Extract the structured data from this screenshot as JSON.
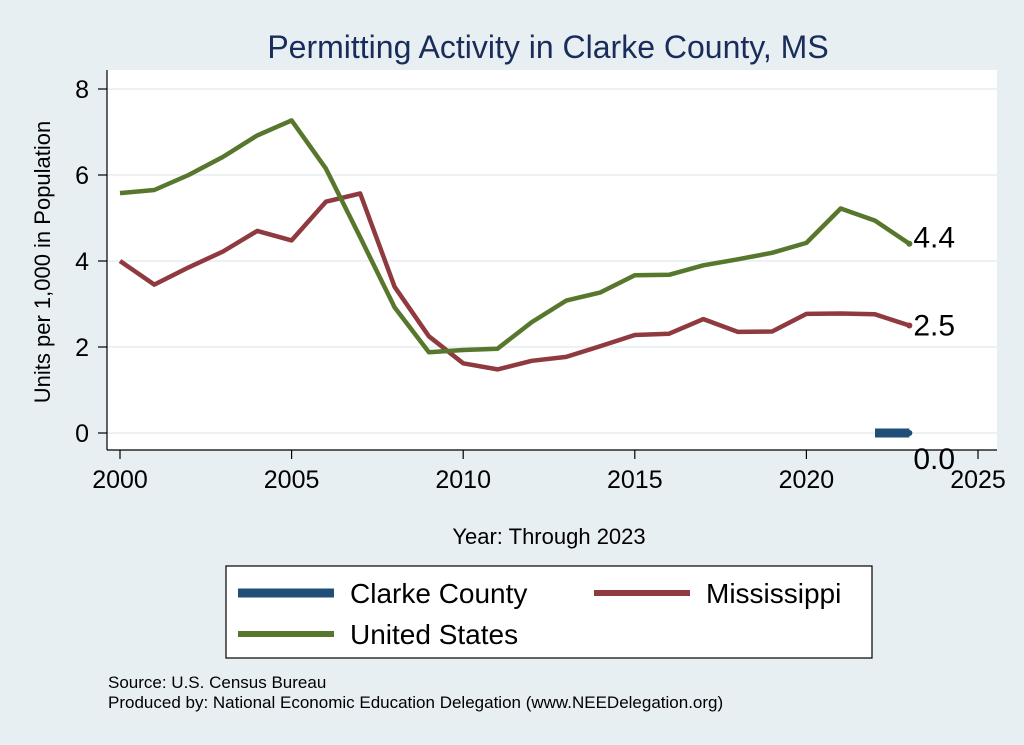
{
  "chart_data": {
    "type": "line",
    "title": "Permitting Activity in Clarke County, MS",
    "xlabel": "Year: Through 2023",
    "ylabel": "Units per 1,000 in Population",
    "xlim": [
      2000,
      2025
    ],
    "ylim": [
      0,
      8
    ],
    "x_ticks": [
      "2000",
      "2005",
      "2010",
      "2015",
      "2020",
      "2025"
    ],
    "y_ticks": [
      "0",
      "2",
      "4",
      "6",
      "8"
    ],
    "grid": true,
    "legend_position": "bottom",
    "series": [
      {
        "name": "Clarke County",
        "color": "#1f4e79",
        "x": [
          2022,
          2023
        ],
        "values": [
          0,
          0
        ],
        "end_label": "0.0"
      },
      {
        "name": "Mississippi",
        "color": "#8f3a3f",
        "x": [
          2000,
          2001,
          2002,
          2003,
          2004,
          2005,
          2006,
          2007,
          2008,
          2009,
          2010,
          2011,
          2012,
          2013,
          2014,
          2015,
          2016,
          2017,
          2018,
          2019,
          2020,
          2021,
          2022,
          2023
        ],
        "values": [
          4.0,
          3.45,
          3.85,
          4.22,
          4.7,
          4.48,
          5.38,
          5.57,
          3.4,
          2.25,
          1.62,
          1.48,
          1.68,
          1.77,
          2.02,
          2.28,
          2.31,
          2.65,
          2.35,
          2.36,
          2.77,
          2.78,
          2.76,
          2.5
        ],
        "end_label": "2.5"
      },
      {
        "name": "United States",
        "color": "#57772d",
        "x": [
          2000,
          2001,
          2002,
          2003,
          2004,
          2005,
          2006,
          2007,
          2008,
          2009,
          2010,
          2011,
          2012,
          2013,
          2014,
          2015,
          2016,
          2017,
          2018,
          2019,
          2020,
          2021,
          2022,
          2023
        ],
        "values": [
          5.58,
          5.65,
          6.0,
          6.42,
          6.92,
          7.27,
          6.15,
          4.55,
          2.92,
          1.88,
          1.93,
          1.96,
          2.58,
          3.08,
          3.27,
          3.67,
          3.68,
          3.9,
          4.04,
          4.19,
          4.42,
          5.22,
          4.94,
          4.4
        ],
        "end_label": "4.4"
      }
    ],
    "legend_order": [
      "Clarke County",
      "Mississippi",
      "United States"
    ]
  },
  "notes": {
    "source": "Source: U.S. Census Bureau",
    "produced": "Produced by: National Economic Education Delegation (www.NEEDelegation.org)"
  }
}
